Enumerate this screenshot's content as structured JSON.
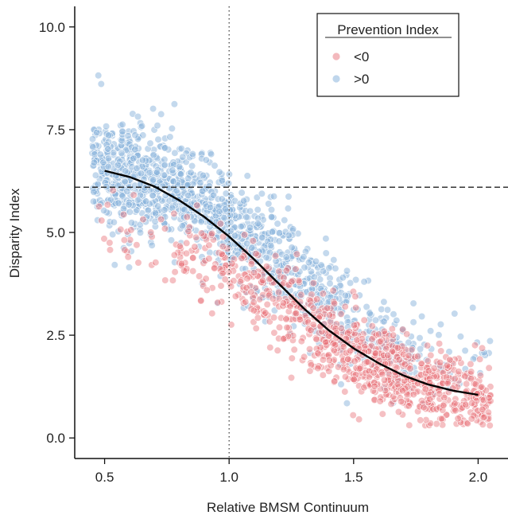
{
  "chart_data": {
    "type": "scatter",
    "title": "",
    "xlabel": "Relative BMSM Continuum",
    "ylabel": "Disparity Index",
    "xlim": [
      0.38,
      2.12
    ],
    "ylim": [
      -0.5,
      10.5
    ],
    "xticks": [
      0.5,
      1.0,
      1.5,
      2.0
    ],
    "xtick_labels": [
      "0.5",
      "1.0",
      "1.5",
      "2.0"
    ],
    "yticks": [
      0.0,
      2.5,
      5.0,
      7.5,
      10.0
    ],
    "ytick_labels": [
      "0.0",
      "2.5",
      "5.0",
      "7.5",
      "10.0"
    ],
    "grid": false,
    "legend": {
      "title": "Prevention Index",
      "placement": "top-right",
      "entries": [
        {
          "label": "<0",
          "color": "#e8737b"
        },
        {
          "label": ">0",
          "color": "#8ab4dc"
        }
      ]
    },
    "reference_lines": {
      "vertical_x": 1.0,
      "vertical_style": "dotted",
      "horizontal_y": 6.1,
      "horizontal_style": "dashed"
    },
    "series": [
      {
        "name": "<0",
        "color": "#e8737b",
        "approx_points": 2300,
        "density_by_x": [
          {
            "x": 0.5,
            "y_center": 5.2,
            "y_spread": 0.5
          },
          {
            "x": 1.0,
            "y_center": 4.1,
            "y_spread": 0.5
          },
          {
            "x": 1.25,
            "y_center": 3.0,
            "y_spread": 0.55
          },
          {
            "x": 1.5,
            "y_center": 2.0,
            "y_spread": 0.5
          },
          {
            "x": 1.75,
            "y_center": 1.35,
            "y_spread": 0.45
          },
          {
            "x": 2.05,
            "y_center": 0.9,
            "y_spread": 0.45
          }
        ]
      },
      {
        "name": ">0",
        "color": "#8ab4dc",
        "approx_points": 3300,
        "density_by_x": [
          {
            "x": 0.45,
            "y_center": 6.6,
            "y_spread": 0.7
          },
          {
            "x": 0.75,
            "y_center": 6.2,
            "y_spread": 0.65
          },
          {
            "x": 1.0,
            "y_center": 5.2,
            "y_spread": 0.6
          },
          {
            "x": 1.25,
            "y_center": 4.0,
            "y_spread": 0.6
          },
          {
            "x": 1.5,
            "y_center": 2.9,
            "y_spread": 0.6
          },
          {
            "x": 1.75,
            "y_center": 2.0,
            "y_spread": 0.45
          }
        ]
      }
    ],
    "fit_curve": {
      "style": "solid",
      "color": "#000000",
      "x": [
        0.5,
        0.6,
        0.7,
        0.8,
        0.9,
        1.0,
        1.1,
        1.2,
        1.3,
        1.4,
        1.5,
        1.6,
        1.7,
        1.8,
        1.9,
        2.0
      ],
      "y": [
        6.5,
        6.35,
        6.12,
        5.78,
        5.38,
        4.9,
        4.35,
        3.75,
        3.15,
        2.62,
        2.18,
        1.82,
        1.52,
        1.3,
        1.15,
        1.05
      ]
    }
  }
}
